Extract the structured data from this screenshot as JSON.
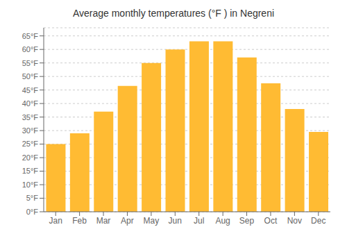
{
  "chart_data": {
    "type": "bar",
    "title": "Average monthly temperatures (°F ) in Negreni",
    "categories": [
      "Jan",
      "Feb",
      "Mar",
      "Apr",
      "May",
      "Jun",
      "Jul",
      "Aug",
      "Sep",
      "Oct",
      "Nov",
      "Dec"
    ],
    "values": [
      25,
      29,
      37,
      46.5,
      55,
      60,
      63,
      63,
      57,
      47.5,
      38,
      29.5
    ],
    "color": "#FFBB33",
    "ylim": [
      0,
      68
    ],
    "yticks": [
      {
        "value": 0,
        "label": "0°F"
      },
      {
        "value": 5,
        "label": "5°F"
      },
      {
        "value": 10,
        "label": "10°F"
      },
      {
        "value": 15,
        "label": "15°F"
      },
      {
        "value": 20,
        "label": "20°F"
      },
      {
        "value": 25,
        "label": "25°F"
      },
      {
        "value": 30,
        "label": "30°F"
      },
      {
        "value": 35,
        "label": "35°F"
      },
      {
        "value": 40,
        "label": "40°F"
      },
      {
        "value": 45,
        "label": "45°F"
      },
      {
        "value": 50,
        "label": "50°F"
      },
      {
        "value": 55,
        "label": "55°F"
      },
      {
        "value": 60,
        "label": "60°F"
      },
      {
        "value": 65,
        "label": "65°F"
      }
    ],
    "grid": true
  }
}
